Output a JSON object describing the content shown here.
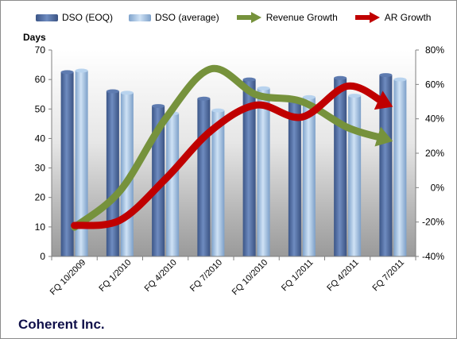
{
  "chart_data": {
    "type": "bar",
    "company_label": "Coherent Inc.",
    "categories": [
      "FQ 10/2009",
      "FQ 1/2010",
      "FQ 4/2010",
      "FQ 7/2010",
      "FQ 10/2010",
      "FQ 1/2011",
      "FQ 4/2011",
      "FQ 7/2011"
    ],
    "ylabel": "Days",
    "ylim": [
      0,
      70
    ],
    "yticks": [
      0,
      10,
      20,
      30,
      40,
      50,
      60,
      70
    ],
    "y2lim": [
      -40,
      80
    ],
    "y2ticks": [
      "-40%",
      "-20%",
      "0%",
      "20%",
      "40%",
      "60%",
      "80%"
    ],
    "series": [
      {
        "name": "DSO (EOQ)",
        "kind": "bar",
        "axis": "left",
        "color": "#4f6b9e",
        "values": [
          62.5,
          56,
          51,
          53.5,
          60,
          52.5,
          60.5,
          61.5
        ]
      },
      {
        "name": "DSO (average)",
        "kind": "bar",
        "axis": "left",
        "color": "#a9c8e8",
        "values": [
          63,
          55.5,
          48.5,
          49.5,
          57,
          54,
          54.5,
          60
        ]
      },
      {
        "name": "Revenue Growth",
        "kind": "line",
        "axis": "right",
        "unit": "%",
        "color": "#76923c",
        "values": [
          -23,
          -2,
          40,
          69,
          54,
          50,
          35,
          27
        ]
      },
      {
        "name": "AR Growth",
        "kind": "line",
        "axis": "right",
        "unit": "%",
        "color": "#c00000",
        "values": [
          -22,
          -19,
          5,
          33,
          48,
          41,
          59,
          47
        ]
      }
    ],
    "legend_position": "top",
    "grid": false
  }
}
